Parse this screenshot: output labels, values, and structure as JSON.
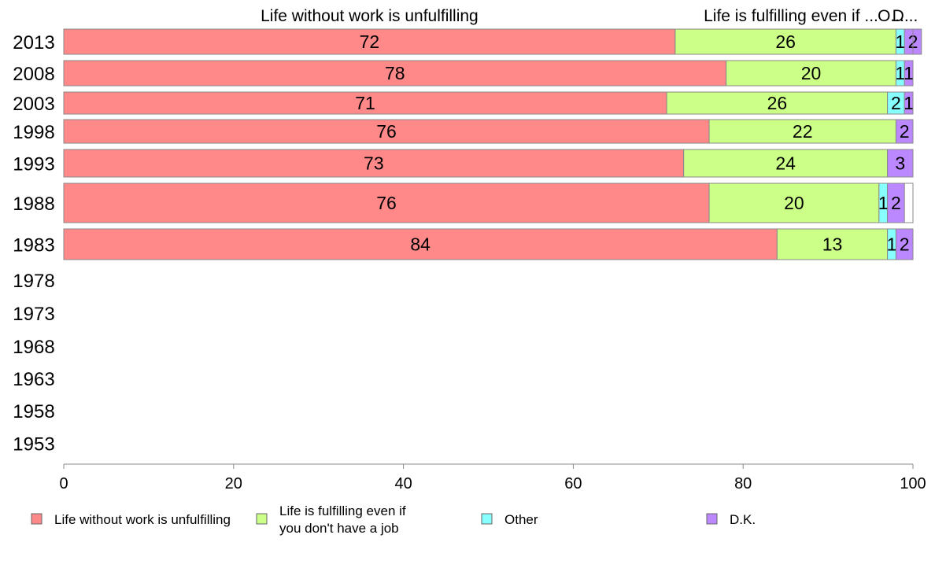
{
  "chart_data": {
    "type": "bar",
    "orientation": "horizontal",
    "stacked": true,
    "categories": [
      "2013",
      "2008",
      "2003",
      "1998",
      "1993",
      "1988",
      "1983",
      "1978",
      "1973",
      "1968",
      "1963",
      "1958",
      "1953"
    ],
    "series": [
      {
        "name": "Life without work is unfulfilling",
        "color": "#ff8888",
        "values": [
          72,
          78,
          71,
          76,
          73,
          76,
          84,
          null,
          null,
          null,
          null,
          null,
          null
        ]
      },
      {
        "name": "Life is fulfilling even if you don't have a job",
        "color": "#ccff88",
        "values": [
          26,
          20,
          26,
          22,
          24,
          20,
          13,
          null,
          null,
          null,
          null,
          null,
          null
        ]
      },
      {
        "name": "Other",
        "color": "#88ffff",
        "values": [
          1,
          1,
          2,
          0,
          0,
          1,
          1,
          null,
          null,
          null,
          null,
          null,
          null
        ]
      },
      {
        "name": "D.K.",
        "color": "#bb88ff",
        "values": [
          2,
          1,
          1,
          2,
          3,
          2,
          2,
          null,
          null,
          null,
          null,
          null,
          null
        ]
      }
    ],
    "column_headers": [
      "Life without work is unfulfilling",
      "Life is fulfilling even if ...",
      "O...",
      "D..."
    ],
    "xlim": [
      0,
      100
    ],
    "xticks": [
      0,
      20,
      40,
      60,
      80,
      100
    ],
    "legend_position": "bottom",
    "grid": false
  }
}
